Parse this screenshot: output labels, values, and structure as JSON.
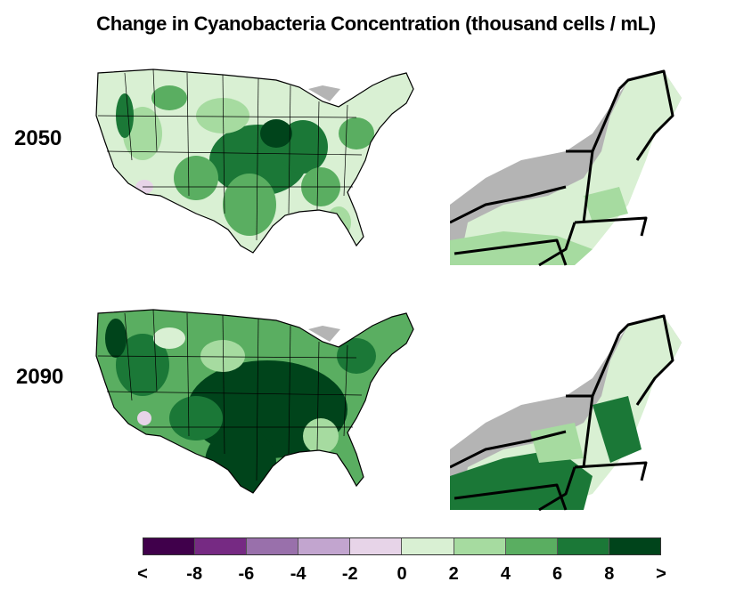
{
  "title": "Change in Cyanobacteria Concentration (thousand cells / mL)",
  "panels": [
    {
      "year": "2050",
      "region_intensity": "moderate"
    },
    {
      "year": "2090",
      "region_intensity": "high"
    }
  ],
  "legend": {
    "colors": [
      "#40004b",
      "#762a83",
      "#9970ab",
      "#c2a5cf",
      "#e7d4e8",
      "#d9f0d3",
      "#a6dba0",
      "#5aae61",
      "#1b7837",
      "#00441b"
    ],
    "labels": [
      "<",
      "-8",
      "-6",
      "-4",
      "-2",
      "0",
      "2",
      "4",
      "6",
      "8",
      ">"
    ]
  },
  "no_data_color": "#b4b4b4"
}
